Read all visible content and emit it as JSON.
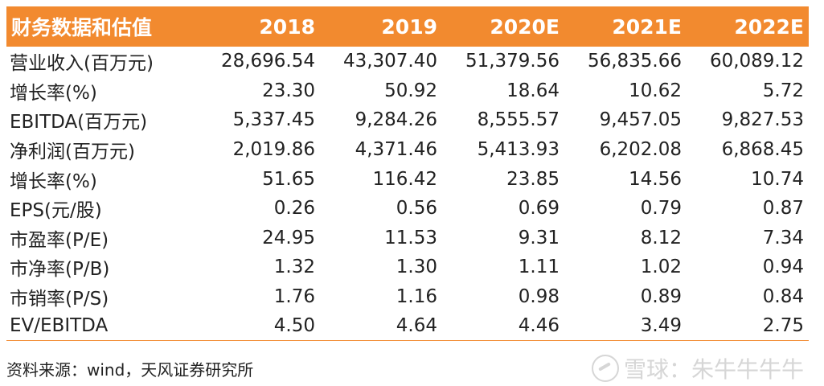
{
  "table": {
    "header": [
      "财务数据和估值",
      "2018",
      "2019",
      "2020E",
      "2021E",
      "2022E"
    ],
    "rows": [
      [
        "营业收入(百万元)",
        "28,696.54",
        "43,307.40",
        "51,379.56",
        "56,835.66",
        "60,089.12"
      ],
      [
        "增长率(%)",
        "23.30",
        "50.92",
        "18.64",
        "10.62",
        "5.72"
      ],
      [
        "EBITDA(百万元)",
        "5,337.45",
        "9,284.26",
        "8,555.57",
        "9,457.05",
        "9,827.53"
      ],
      [
        "净利润(百万元)",
        "2,019.86",
        "4,371.46",
        "5,413.93",
        "6,202.08",
        "6,868.45"
      ],
      [
        "增长率(%)",
        "51.65",
        "116.42",
        "23.85",
        "14.56",
        "10.74"
      ],
      [
        "EPS(元/股)",
        "0.26",
        "0.56",
        "0.69",
        "0.79",
        "0.87"
      ],
      [
        "市盈率(P/E)",
        "24.95",
        "11.53",
        "9.31",
        "8.12",
        "7.34"
      ],
      [
        "市净率(P/B)",
        "1.32",
        "1.30",
        "1.11",
        "1.02",
        "0.94"
      ],
      [
        "市销率(P/S)",
        "1.76",
        "1.16",
        "0.98",
        "0.89",
        "0.84"
      ],
      [
        "EV/EBITDA",
        "4.50",
        "4.64",
        "4.46",
        "3.49",
        "2.75"
      ]
    ]
  },
  "footer": {
    "source": "资料来源：wind，天风证券研究所",
    "watermark": "雪球：朱牛牛牛牛"
  },
  "colors": {
    "header_bg": "#f28a2f",
    "header_text": "#ffffff"
  }
}
